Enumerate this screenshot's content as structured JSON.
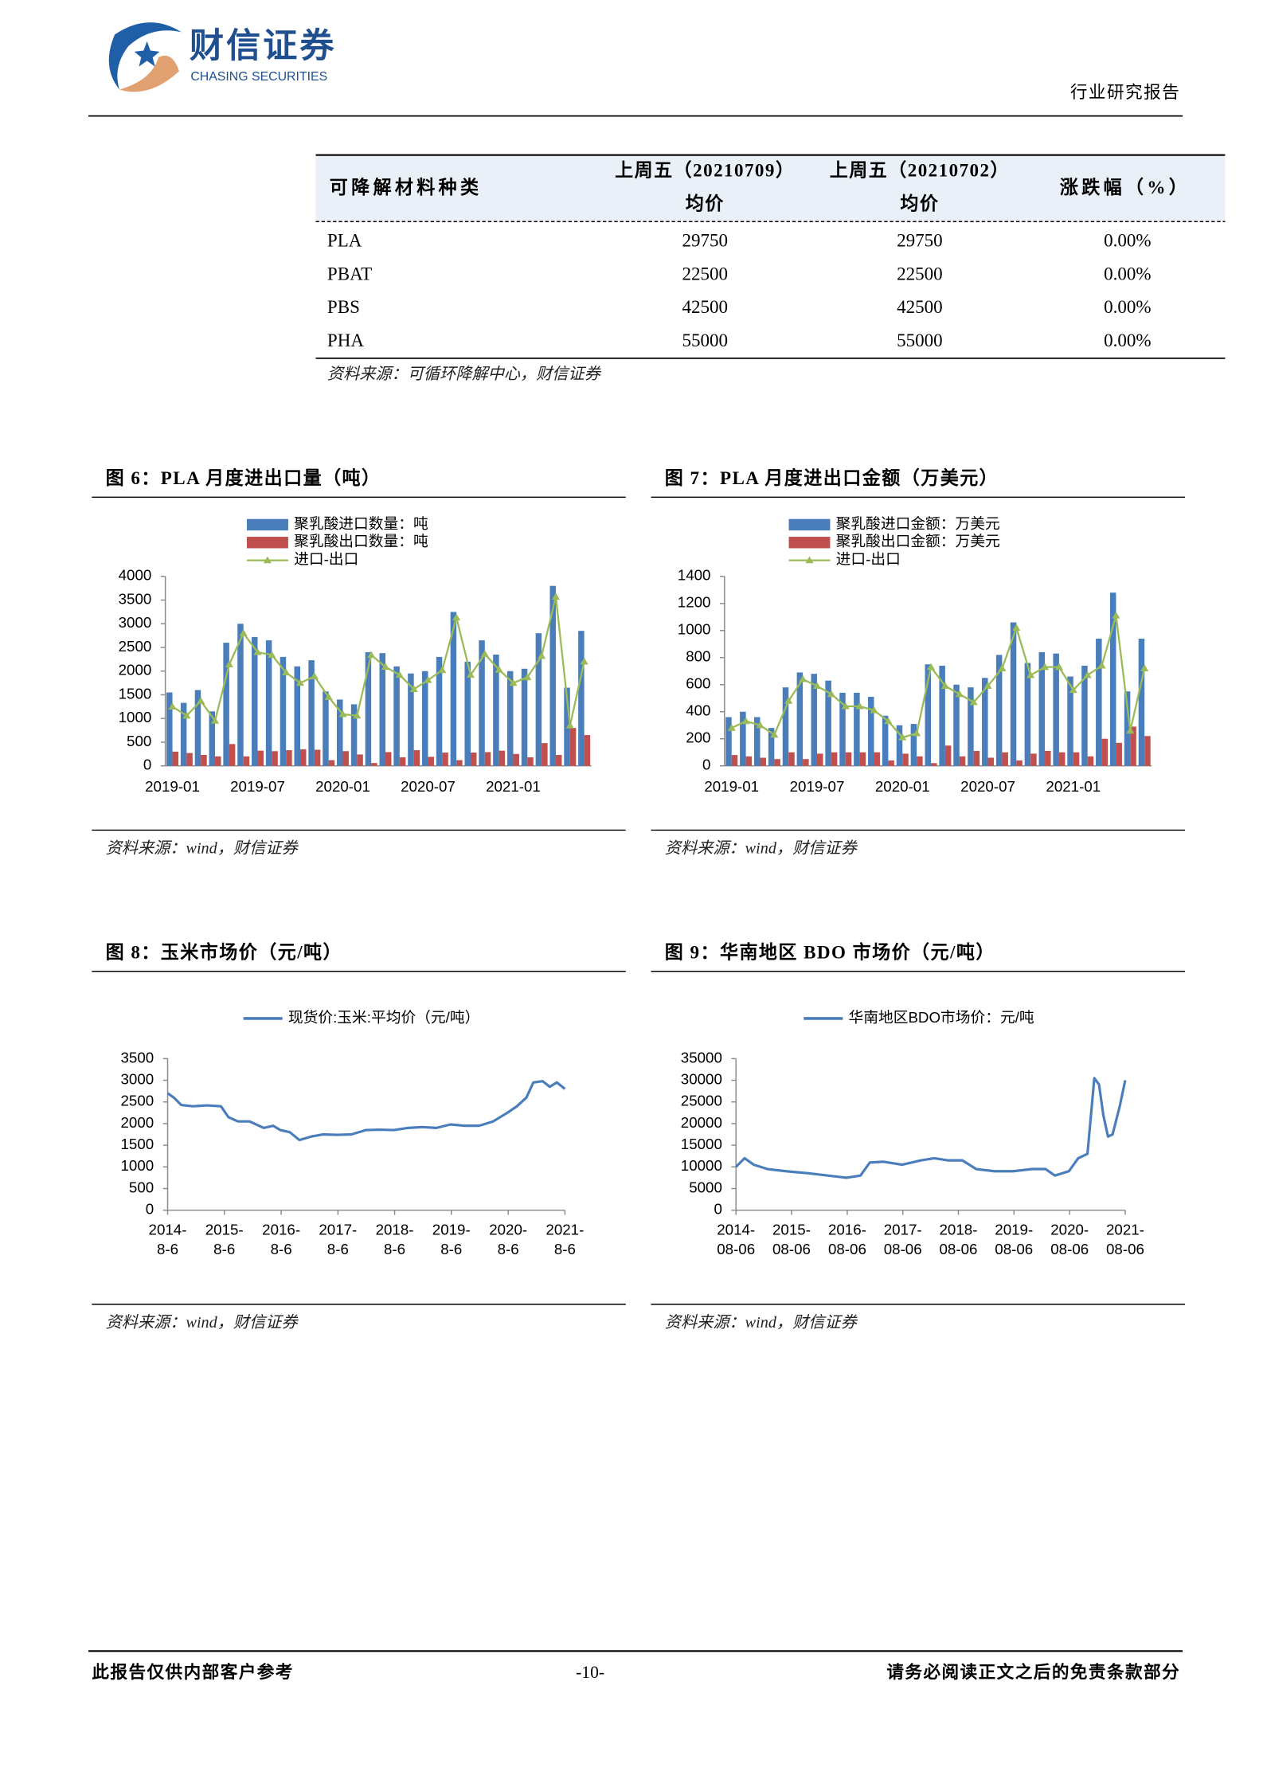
{
  "header": {
    "logo_cn": "财信证券",
    "logo_en": "CHASING SECURITIES",
    "report_type": "行业研究报告"
  },
  "table": {
    "header": [
      [
        "可降解材料种类"
      ],
      [
        "上周五（20210709）",
        "均价"
      ],
      [
        "上周五（20210702）",
        "均价"
      ],
      [
        "涨跌幅（%）"
      ]
    ],
    "rows": [
      [
        "PLA",
        29750,
        29750,
        "0.00%"
      ],
      [
        "PBAT",
        22500,
        22500,
        "0.00%"
      ],
      [
        "PBS",
        42500,
        42500,
        "0.00%"
      ],
      [
        "PHA",
        55000,
        55000,
        "0.00%"
      ]
    ],
    "source": "资料来源：可循环降解中心，财信证券"
  },
  "chart_data": [
    {
      "type": "bar",
      "title": "图 6：PLA 月度进出口量（吨）",
      "source": "资料来源：wind，财信证券",
      "legend": "top",
      "categories": [
        "2019-01",
        null,
        null,
        null,
        null,
        null,
        "2019-07",
        null,
        null,
        null,
        null,
        null,
        "2020-01",
        null,
        null,
        null,
        null,
        null,
        "2020-07",
        null,
        null,
        null,
        null,
        null,
        "2021-01",
        null,
        null,
        null,
        null,
        null
      ],
      "series": [
        {
          "name": "聚乳酸进口数量：吨",
          "type": "bar",
          "color": "#4a7ebb",
          "values": [
            1550,
            1330,
            1600,
            1150,
            2600,
            3000,
            2720,
            2650,
            2300,
            2100,
            2230,
            1570,
            1400,
            1300,
            2400,
            2380,
            2100,
            1950,
            2000,
            2300,
            3250,
            2200,
            2650,
            2350,
            2000,
            2050,
            2800,
            3800,
            1650,
            2850
          ]
        },
        {
          "name": "聚乳酸出口数量：吨",
          "type": "bar",
          "color": "#c0504d",
          "values": [
            300,
            270,
            230,
            200,
            460,
            200,
            320,
            310,
            330,
            350,
            340,
            120,
            310,
            240,
            60,
            290,
            180,
            330,
            190,
            280,
            120,
            280,
            290,
            320,
            250,
            180,
            480,
            230,
            800,
            650
          ]
        },
        {
          "name": "进口-出口",
          "type": "line",
          "color": "#9bbb59",
          "values": [
            1250,
            1060,
            1370,
            950,
            2140,
            2800,
            2400,
            2340,
            1970,
            1750,
            1890,
            1450,
            1090,
            1060,
            2340,
            2090,
            1920,
            1620,
            1810,
            2020,
            3130,
            1920,
            2360,
            2030,
            1750,
            1870,
            2320,
            3570,
            850,
            2200
          ]
        }
      ],
      "ylim": [
        0,
        4000
      ],
      "yticks": [
        0,
        500,
        1000,
        1500,
        2000,
        2500,
        3000,
        3500,
        4000
      ],
      "grid": false
    },
    {
      "type": "bar",
      "title": "图 7：PLA 月度进出口金额（万美元）",
      "source": "资料来源：wind，财信证券",
      "legend": "top",
      "categories": [
        "2019-01",
        null,
        null,
        null,
        null,
        null,
        "2019-07",
        null,
        null,
        null,
        null,
        null,
        "2020-01",
        null,
        null,
        null,
        null,
        null,
        "2020-07",
        null,
        null,
        null,
        null,
        null,
        "2021-01",
        null,
        null,
        null,
        null,
        null
      ],
      "series": [
        {
          "name": "聚乳酸进口金额：万美元",
          "type": "bar",
          "color": "#4a7ebb",
          "values": [
            360,
            400,
            360,
            280,
            580,
            690,
            680,
            630,
            540,
            540,
            510,
            370,
            300,
            310,
            750,
            740,
            600,
            580,
            650,
            820,
            1060,
            760,
            840,
            830,
            660,
            740,
            940,
            1280,
            550,
            940
          ]
        },
        {
          "name": "聚乳酸出口金额：万美元",
          "type": "bar",
          "color": "#c0504d",
          "values": [
            80,
            70,
            60,
            50,
            100,
            50,
            90,
            100,
            100,
            100,
            100,
            40,
            90,
            70,
            20,
            150,
            70,
            110,
            60,
            100,
            40,
            90,
            110,
            100,
            100,
            70,
            200,
            170,
            290,
            220
          ]
        },
        {
          "name": "进口-出口",
          "type": "line",
          "color": "#9bbb59",
          "values": [
            280,
            330,
            300,
            230,
            480,
            640,
            590,
            530,
            440,
            440,
            410,
            330,
            210,
            240,
            730,
            590,
            530,
            470,
            590,
            720,
            1020,
            670,
            730,
            730,
            560,
            670,
            740,
            1110,
            260,
            720
          ]
        }
      ],
      "ylim": [
        0,
        1400
      ],
      "yticks": [
        0,
        200,
        400,
        600,
        800,
        1000,
        1200,
        1400
      ],
      "grid": false
    },
    {
      "type": "line",
      "title": "图 8：玉米市场价（元/吨）",
      "source": "资料来源：wind，财信证券",
      "legend": "top",
      "x": [
        "2014-08-06",
        "2014-09-15",
        "2014-11-01",
        "2015-01-15",
        "2015-04-15",
        "2015-07-15",
        "2015-09-01",
        "2015-11-01",
        "2016-01-15",
        "2016-04-15",
        "2016-06-15",
        "2016-08-01",
        "2016-10-01",
        "2016-12-01",
        "2017-02-15",
        "2017-05-01",
        "2017-08-01",
        "2017-11-01",
        "2018-02-01",
        "2018-05-01",
        "2018-08-01",
        "2018-11-01",
        "2019-02-01",
        "2019-05-01",
        "2019-08-01",
        "2019-11-01",
        "2020-02-01",
        "2020-05-01",
        "2020-08-01",
        "2020-10-01",
        "2020-12-01",
        "2021-01-15",
        "2021-03-15",
        "2021-05-01",
        "2021-06-15",
        "2021-08-06"
      ],
      "series": [
        {
          "name": "现货价:玉米:平均价（元/吨）",
          "color": "#4a7ebb",
          "values": [
            2700,
            2600,
            2430,
            2400,
            2420,
            2400,
            2150,
            2050,
            2050,
            1900,
            1950,
            1850,
            1800,
            1620,
            1700,
            1750,
            1740,
            1750,
            1850,
            1860,
            1850,
            1900,
            1920,
            1900,
            1980,
            1950,
            1950,
            2050,
            2250,
            2400,
            2600,
            2950,
            2980,
            2850,
            2950,
            2800
          ]
        }
      ],
      "xlim": [
        "2014-08-06",
        "2021-08-06"
      ],
      "xticks": [
        {
          "value": "2014-08-06",
          "label": "2014-8-6"
        },
        {
          "value": "2015-08-06",
          "label": "2015-8-6"
        },
        {
          "value": "2016-08-06",
          "label": "2016-8-6"
        },
        {
          "value": "2017-08-06",
          "label": "2017-8-6"
        },
        {
          "value": "2018-08-06",
          "label": "2018-8-6"
        },
        {
          "value": "2019-08-06",
          "label": "2019-8-6"
        },
        {
          "value": "2020-08-06",
          "label": "2020-8-6"
        },
        {
          "value": "2021-08-06",
          "label": "2021-8-6"
        }
      ],
      "ylim": [
        0,
        3500
      ],
      "yticks": [
        0,
        500,
        1000,
        1500,
        2000,
        2500,
        3000,
        3500
      ],
      "grid": false
    },
    {
      "type": "line",
      "title": "图 9：华南地区 BDO 市场价（元/吨）",
      "source": "资料来源：wind，财信证券",
      "legend": "top",
      "x": [
        "2014-08-06",
        "2014-10-01",
        "2014-12-01",
        "2015-03-01",
        "2015-07-01",
        "2015-12-01",
        "2016-04-01",
        "2016-08-01",
        "2016-11-01",
        "2017-01-01",
        "2017-04-01",
        "2017-08-01",
        "2017-12-01",
        "2018-03-01",
        "2018-06-01",
        "2018-09-01",
        "2018-12-01",
        "2019-04-01",
        "2019-08-01",
        "2019-12-01",
        "2020-03-01",
        "2020-05-01",
        "2020-08-01",
        "2020-10-01",
        "2020-12-01",
        "2021-01-15",
        "2021-02-15",
        "2021-03-15",
        "2021-04-15",
        "2021-05-15",
        "2021-07-01",
        "2021-08-06"
      ],
      "series": [
        {
          "name": "华南地区BDO市场价：元/吨",
          "color": "#4a7ebb",
          "values": [
            10000,
            12000,
            10500,
            9500,
            9000,
            8500,
            8000,
            7500,
            8000,
            11000,
            11200,
            10500,
            11500,
            12000,
            11500,
            11500,
            9500,
            9000,
            9000,
            9500,
            9500,
            8000,
            9000,
            12000,
            13000,
            30500,
            29000,
            22000,
            17000,
            17500,
            24000,
            30000
          ]
        }
      ],
      "xlim": [
        "2014-08-06",
        "2021-08-06"
      ],
      "xticks": [
        {
          "value": "2014-08-06",
          "label": "2014-08-06"
        },
        {
          "value": "2015-08-06",
          "label": "2015-08-06"
        },
        {
          "value": "2016-08-06",
          "label": "2016-08-06"
        },
        {
          "value": "2017-08-06",
          "label": "2017-08-06"
        },
        {
          "value": "2018-08-06",
          "label": "2018-08-06"
        },
        {
          "value": "2019-08-06",
          "label": "2019-08-06"
        },
        {
          "value": "2020-08-06",
          "label": "2020-08-06"
        },
        {
          "value": "2021-08-06",
          "label": "2021-08-06"
        }
      ],
      "ylim": [
        0,
        35000
      ],
      "yticks": [
        0,
        5000,
        10000,
        15000,
        20000,
        25000,
        30000,
        35000
      ],
      "grid": false
    }
  ],
  "footer": {
    "left": "此报告仅供内部客户参考",
    "page": "-10-",
    "right": "请务必阅读正文之后的免责条款部分"
  }
}
